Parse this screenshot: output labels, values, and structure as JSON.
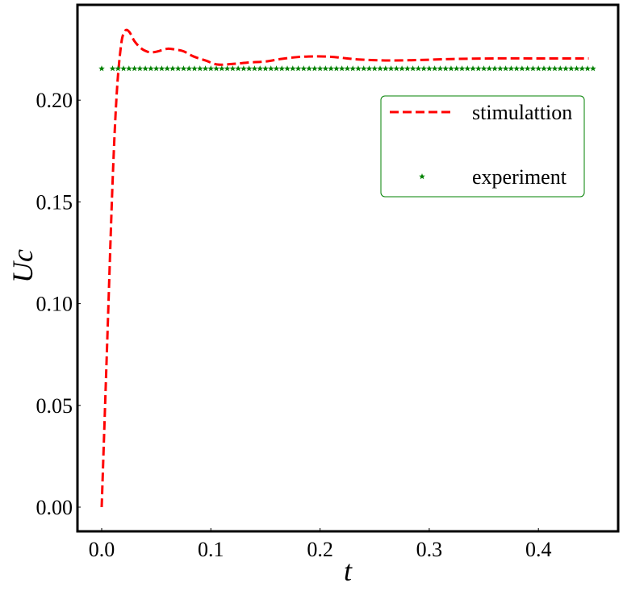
{
  "chart_data": {
    "type": "line",
    "title": "",
    "xlabel": "t",
    "ylabel": "Uc",
    "xlim": [
      -0.022,
      0.473
    ],
    "ylim": [
      -0.012,
      0.2455
    ],
    "xticks": [
      0.0,
      0.1,
      0.2,
      0.3,
      0.4
    ],
    "xtick_labels": [
      "0.0",
      "0.1",
      "0.2",
      "0.3",
      "0.4"
    ],
    "yticks": [
      0.0,
      0.05,
      0.1,
      0.15,
      0.2
    ],
    "ytick_labels": [
      "0.00",
      "0.05",
      "0.10",
      "0.15",
      "0.20"
    ],
    "grid": false,
    "legend_position": "upper right",
    "series": [
      {
        "name": "stimulattion",
        "style": "dashed-line",
        "color": "#ff0000",
        "x": [
          0.0,
          0.005,
          0.01,
          0.014,
          0.018,
          0.021,
          0.023,
          0.026,
          0.03,
          0.036,
          0.042,
          0.048,
          0.055,
          0.061,
          0.068,
          0.075,
          0.084,
          0.095,
          0.106,
          0.12,
          0.135,
          0.15,
          0.165,
          0.18,
          0.195,
          0.21,
          0.22,
          0.235,
          0.26,
          0.29,
          0.32,
          0.36,
          0.4,
          0.446
        ],
        "y": [
          0.0,
          0.08,
          0.16,
          0.205,
          0.228,
          0.2335,
          0.2345,
          0.233,
          0.229,
          0.2255,
          0.2238,
          0.2236,
          0.2245,
          0.2253,
          0.2248,
          0.224,
          0.2215,
          0.2195,
          0.2175,
          0.2178,
          0.2185,
          0.219,
          0.2203,
          0.2212,
          0.2215,
          0.2213,
          0.2208,
          0.22,
          0.2195,
          0.2197,
          0.2202,
          0.2205,
          0.2205,
          0.2205
        ]
      },
      {
        "name": "experiment",
        "style": "star-markers",
        "color": "#008000",
        "x_start": 0.0,
        "x_end": 0.45,
        "x_step": 0.005,
        "gap_after_first": true,
        "y_constant": 0.2155
      }
    ]
  },
  "legend": {
    "items": [
      {
        "label": "stimulattion",
        "color": "#ff0000",
        "marker": "dashed-line"
      },
      {
        "label": "experiment",
        "color": "#008000",
        "marker": "star"
      }
    ],
    "border_color": "#008000"
  },
  "axes": {
    "xlabel": "t",
    "ylabel": "Uc"
  }
}
